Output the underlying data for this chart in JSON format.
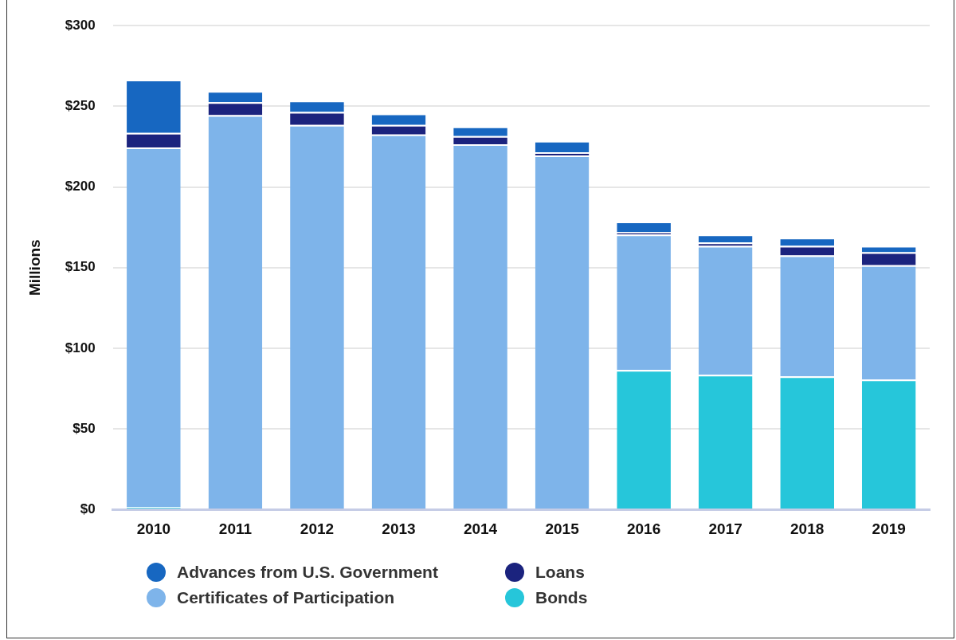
{
  "chart_data": {
    "type": "bar",
    "ylabel": "Millions",
    "stacked": true,
    "grid": "y",
    "legend": "bottom",
    "marker": "circle",
    "categories": [
      "2010",
      "2011",
      "2012",
      "2013",
      "2014",
      "2015",
      "2016",
      "2017",
      "2018",
      "2019"
    ],
    "ylim": [
      0,
      300
    ],
    "yticks": [
      {
        "value": 0,
        "label": "$0"
      },
      {
        "value": 50,
        "label": "$50"
      },
      {
        "value": 100,
        "label": "$100"
      },
      {
        "value": 150,
        "label": "$150"
      },
      {
        "value": 200,
        "label": "$200"
      },
      {
        "value": 250,
        "label": "$250"
      },
      {
        "value": 300,
        "label": "$300"
      }
    ],
    "series": [
      {
        "name": "Bonds",
        "color": "#26c6da",
        "values": [
          1.5,
          0,
          0,
          0,
          0,
          0,
          86.5,
          83.5,
          82.5,
          80.5
        ]
      },
      {
        "name": "Certificates of Participation",
        "color": "#7eb4ea",
        "values": [
          223,
          244.5,
          238.5,
          232.5,
          226.5,
          219.5,
          84,
          80,
          75,
          71
        ]
      },
      {
        "name": "Loans",
        "color": "#1b237e",
        "values": [
          9,
          8,
          8,
          6,
          5,
          2,
          1.5,
          2,
          6,
          8
        ]
      },
      {
        "name": "Advances from U.S. Government",
        "color": "#1767c1",
        "values": [
          33,
          7,
          7,
          7,
          6,
          7,
          6.5,
          5,
          5,
          4
        ]
      }
    ]
  }
}
